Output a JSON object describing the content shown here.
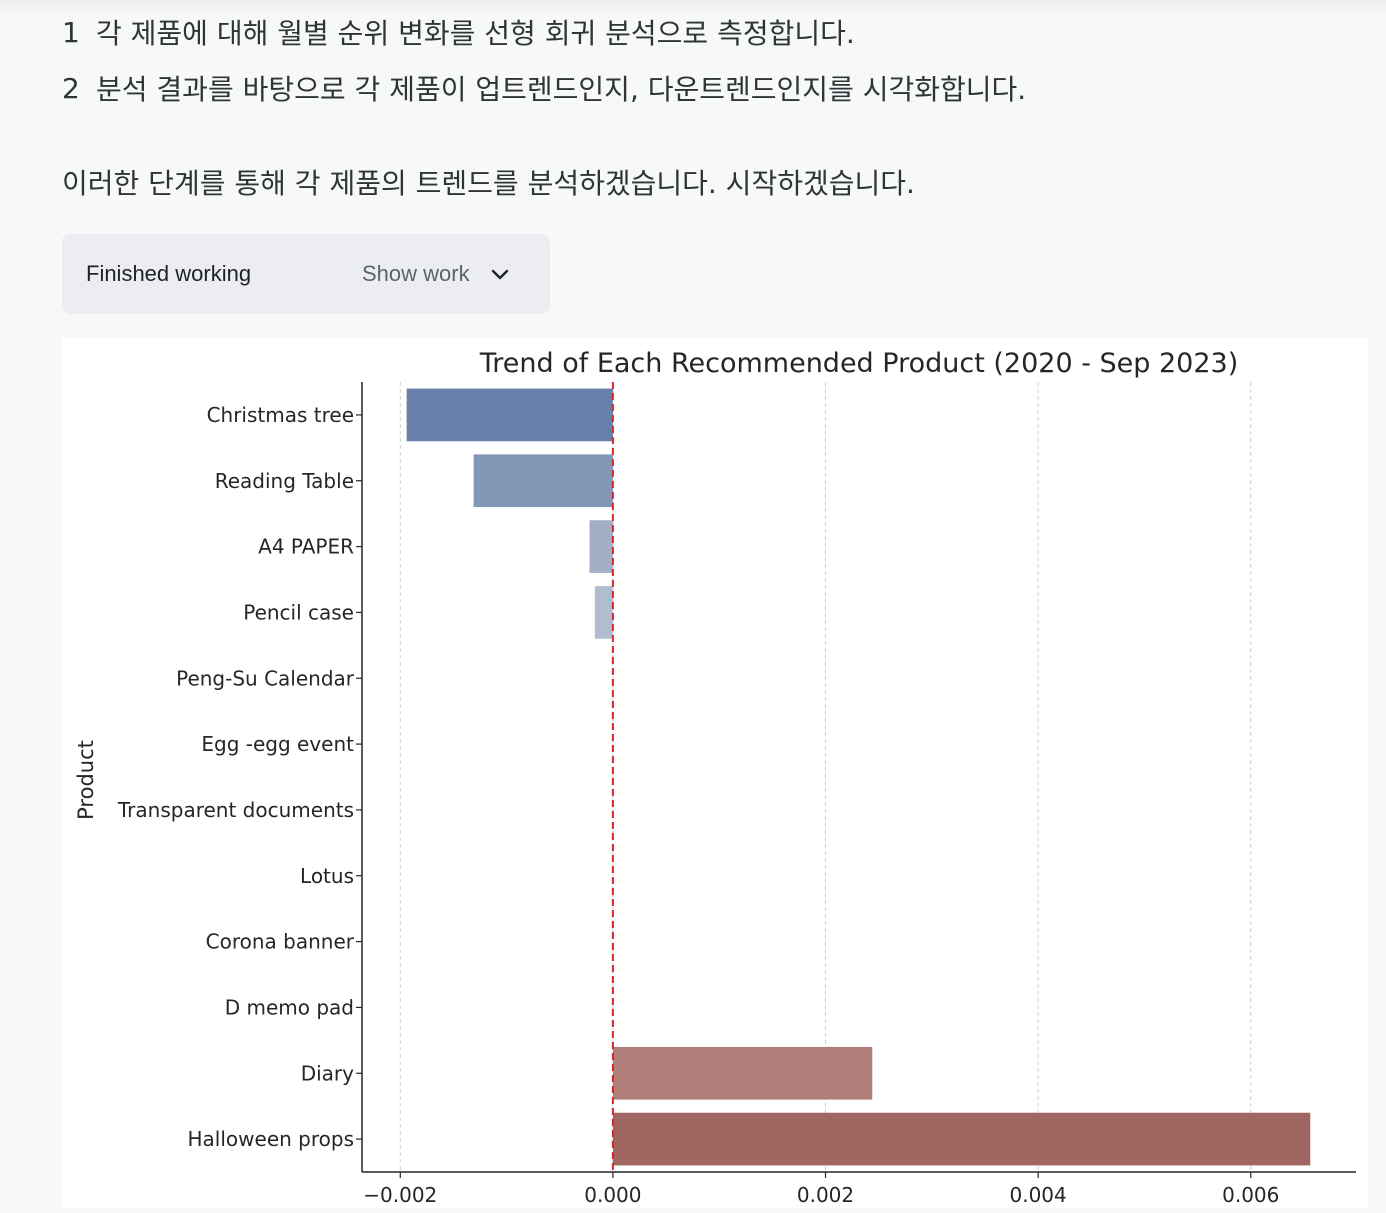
{
  "steps": [
    {
      "num": "1",
      "text": "각 제품에 대해 월별 순위 변화를 선형 회귀 분석으로 측정합니다."
    },
    {
      "num": "2",
      "text": "분석 결과를 바탕으로 각 제품이 업트렌드인지, 다운트렌드인지를 시각화합니다."
    }
  ],
  "intro": "이러한 단계를 통해 각 제품의 트렌드를 분석하겠습니다. 시작하겠습니다.",
  "work": {
    "status": "Finished working",
    "toggle_label": "Show work",
    "toggle_icon": "chevron-down-icon"
  },
  "chart_data": {
    "type": "bar",
    "orientation": "horizontal",
    "title": "Trend of Each Recommended Product (2020 - Sep 2023)",
    "ylabel": "Product",
    "xlabel": "",
    "categories": [
      "Christmas tree",
      "Reading Table",
      "A4 PAPER",
      "Pencil case",
      "Peng-Su Calendar",
      "Egg -egg event",
      "Transparent documents",
      "Lotus",
      "Corona banner",
      "D memo pad",
      "Diary",
      "Halloween props"
    ],
    "values": [
      -0.00194,
      -0.00131,
      -0.00022,
      -0.00017,
      0,
      0,
      0,
      0,
      0,
      0,
      0.00244,
      0.00656
    ],
    "colors": [
      "#6680ab",
      "#8496b5",
      "#a3afc6",
      "#b1bccf",
      "#c8c8c8",
      "#c8c8c8",
      "#c8c8c8",
      "#c8c8c8",
      "#c8c8c8",
      "#c8c8c8",
      "#b07f7a",
      "#a16662"
    ],
    "xticks": [
      -0.002,
      0.0,
      0.002,
      0.004,
      0.006
    ],
    "xtick_labels": [
      "−0.002",
      "0.000",
      "0.002",
      "0.004",
      "0.006"
    ],
    "xlim": [
      -0.00236,
      0.00699
    ],
    "grid": "x-dashed",
    "reference_line": {
      "x": 0,
      "color": "#d62728",
      "style": "dashed"
    }
  }
}
